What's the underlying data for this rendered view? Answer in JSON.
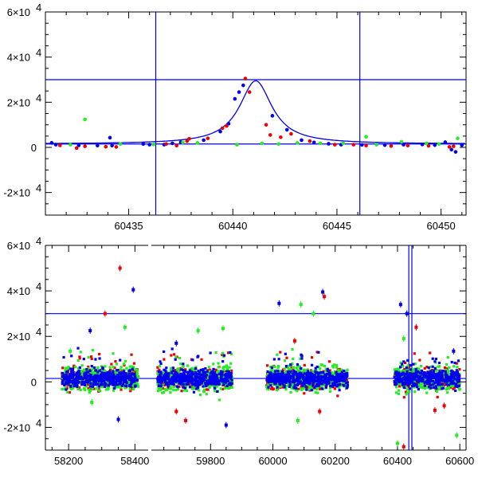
{
  "colors": {
    "blue": "#0000ee",
    "red": "#ee0000",
    "green": "#22ee22",
    "axis": "#000000",
    "background": "#ffffff"
  },
  "chart_data": [
    {
      "type": "scatter",
      "panel": "top",
      "title": "",
      "xlabel": "",
      "ylabel": "",
      "xlim": [
        60431,
        60451.2
      ],
      "ylim": [
        -30000,
        60000
      ],
      "xticks": [
        {
          "value": 60435,
          "label": "60435"
        },
        {
          "value": 60440,
          "label": "60440"
        },
        {
          "value": 60445,
          "label": "60445"
        },
        {
          "value": 60450,
          "label": "60450"
        }
      ],
      "yticks": [
        {
          "value": -20000,
          "label": "-2×10",
          "exp": "4"
        },
        {
          "value": 0,
          "label": "0",
          "exp": ""
        },
        {
          "value": 20000,
          "label": "2×10",
          "exp": "4"
        },
        {
          "value": 40000,
          "label": "4×10",
          "exp": "4"
        },
        {
          "value": 60000,
          "label": "6×10",
          "exp": "4"
        }
      ],
      "hlines": [
        30000,
        1500
      ],
      "vlines": [
        60436.3,
        60446.1
      ],
      "model_curve": {
        "color": "blue",
        "baseline": 1500,
        "peak_x": 60441.1,
        "amplitude": 28000,
        "width": 0.95
      },
      "series": [
        {
          "color": "blue",
          "points": [
            [
              60431.3,
              2000
            ],
            [
              60431.5,
              1200
            ],
            [
              60432.6,
              900
            ],
            [
              60433.5,
              800
            ],
            [
              60434.1,
              4300
            ],
            [
              60434.2,
              800
            ],
            [
              60435.7,
              1500
            ],
            [
              60436.0,
              1200
            ],
            [
              60436.7,
              1200
            ],
            [
              60437.1,
              1800
            ],
            [
              60437.5,
              2300
            ],
            [
              60438.6,
              3200
            ],
            [
              60439.4,
              7000
            ],
            [
              60439.8,
              10500
            ],
            [
              60440.1,
              21500
            ],
            [
              60440.3,
              24500
            ],
            [
              60440.5,
              27500
            ],
            [
              60441.9,
              14000
            ],
            [
              60442.6,
              7800
            ],
            [
              60443.3,
              3200
            ],
            [
              60443.9,
              2200
            ],
            [
              60444.6,
              1600
            ],
            [
              60445.2,
              1200
            ],
            [
              60446.2,
              1100
            ],
            [
              60447.3,
              1000
            ],
            [
              60448.2,
              1200
            ],
            [
              60449.1,
              1300
            ],
            [
              60449.7,
              1000
            ],
            [
              60450.2,
              2300
            ],
            [
              60450.5,
              -1000
            ],
            [
              60450.7,
              -2000
            ],
            [
              60451.0,
              1000
            ]
          ]
        },
        {
          "color": "red",
          "points": [
            [
              60431.7,
              900
            ],
            [
              60432.5,
              -300
            ],
            [
              60432.9,
              500
            ],
            [
              60433.9,
              300
            ],
            [
              60434.4,
              200
            ],
            [
              60436.8,
              1500
            ],
            [
              60437.3,
              800
            ],
            [
              60437.8,
              2800
            ],
            [
              60437.9,
              3800
            ],
            [
              60438.8,
              4000
            ],
            [
              60439.5,
              8500
            ],
            [
              60439.7,
              9500
            ],
            [
              60440.6,
              30500
            ],
            [
              60440.8,
              24500
            ],
            [
              60441.6,
              10000
            ],
            [
              60441.8,
              5500
            ],
            [
              60442.3,
              4500
            ],
            [
              60442.8,
              6000
            ],
            [
              60443.7,
              2800
            ],
            [
              60444.9,
              1200
            ],
            [
              60445.8,
              1200
            ],
            [
              60446.4,
              800
            ],
            [
              60447.6,
              600
            ],
            [
              60448.4,
              800
            ],
            [
              60449.4,
              700
            ],
            [
              60450.4,
              200
            ],
            [
              60450.6,
              500
            ]
          ]
        },
        {
          "color": "green",
          "points": [
            [
              60432.2,
              1200
            ],
            [
              60432.9,
              12400
            ],
            [
              60434.6,
              1500
            ],
            [
              60436.2,
              1300
            ],
            [
              60437.6,
              2200
            ],
            [
              60438.3,
              2000
            ],
            [
              60440.2,
              1200
            ],
            [
              60441.4,
              1800
            ],
            [
              60442.2,
              1500
            ],
            [
              60443.1,
              2000
            ],
            [
              60444.2,
              1800
            ],
            [
              60445.3,
              1800
            ],
            [
              60446.4,
              4700
            ],
            [
              60446.9,
              1200
            ],
            [
              60448.1,
              2500
            ],
            [
              60449.3,
              1800
            ],
            [
              60449.9,
              1500
            ],
            [
              60450.8,
              4000
            ]
          ]
        }
      ]
    },
    {
      "type": "scatter",
      "panel": "bottom",
      "title": "",
      "xlabel": "",
      "ylabel": "",
      "ylim": [
        -30000,
        60000
      ],
      "broken_x_axis": true,
      "x_segments": [
        {
          "range": [
            58130,
            58440
          ]
        },
        {
          "range": [
            59610,
            60620
          ]
        }
      ],
      "xticks": [
        {
          "value": 58200,
          "label": "58200"
        },
        {
          "value": 58400,
          "label": "58400"
        },
        {
          "value": 59800,
          "label": "59800"
        },
        {
          "value": 60000,
          "label": "60000"
        },
        {
          "value": 60200,
          "label": "60200"
        },
        {
          "value": 60400,
          "label": "60400"
        },
        {
          "value": 60600,
          "label": "60600"
        }
      ],
      "yticks": [
        {
          "value": -20000,
          "label": "-2×10",
          "exp": "4"
        },
        {
          "value": 0,
          "label": "0",
          "exp": ""
        },
        {
          "value": 20000,
          "label": "2×10",
          "exp": "4"
        },
        {
          "value": 40000,
          "label": "4×10",
          "exp": "4"
        },
        {
          "value": 60000,
          "label": "6×10",
          "exp": "4"
        }
      ],
      "hlines": [
        30000,
        1500
      ],
      "vlines": [
        60436.3,
        60446.1
      ],
      "seasons": [
        [
          58180,
          58410
        ],
        [
          59630,
          59870
        ],
        [
          59980,
          60240
        ],
        [
          60390,
          60600
        ]
      ],
      "outliers": [
        {
          "color": "red",
          "x": 58355,
          "y": 50000
        },
        {
          "color": "blue",
          "x": 58395,
          "y": 40500
        },
        {
          "color": "red",
          "x": 58310,
          "y": 30000
        },
        {
          "color": "green",
          "x": 58370,
          "y": 24000
        },
        {
          "color": "blue",
          "x": 58265,
          "y": 22500
        },
        {
          "color": "green",
          "x": 58205,
          "y": 13500
        },
        {
          "color": "blue",
          "x": 58350,
          "y": -16500
        },
        {
          "color": "green",
          "x": 58270,
          "y": -9000
        },
        {
          "color": "green",
          "x": 59760,
          "y": 22500
        },
        {
          "color": "green",
          "x": 59840,
          "y": 23500
        },
        {
          "color": "blue",
          "x": 59690,
          "y": 17000
        },
        {
          "color": "red",
          "x": 59690,
          "y": -13000
        },
        {
          "color": "red",
          "x": 59720,
          "y": -17000
        },
        {
          "color": "blue",
          "x": 59850,
          "y": -19000
        },
        {
          "color": "blue",
          "x": 60020,
          "y": 34500
        },
        {
          "color": "green",
          "x": 60090,
          "y": 34000
        },
        {
          "color": "blue",
          "x": 60160,
          "y": 39500
        },
        {
          "color": "red",
          "x": 60165,
          "y": 37500
        },
        {
          "color": "red",
          "x": 60070,
          "y": 18000
        },
        {
          "color": "green",
          "x": 60130,
          "y": 30000
        },
        {
          "color": "green",
          "x": 60080,
          "y": -17000
        },
        {
          "color": "red",
          "x": 60150,
          "y": -13000
        },
        {
          "color": "blue",
          "x": 60410,
          "y": 34000
        },
        {
          "color": "blue",
          "x": 60430,
          "y": 30000
        },
        {
          "color": "red",
          "x": 60460,
          "y": 24000
        },
        {
          "color": "green",
          "x": 60420,
          "y": 19000
        },
        {
          "color": "blue",
          "x": 60580,
          "y": 13500
        },
        {
          "color": "green",
          "x": 60400,
          "y": -27000
        },
        {
          "color": "red",
          "x": 60420,
          "y": -28500
        },
        {
          "color": "green",
          "x": 60590,
          "y": -23500
        },
        {
          "color": "red",
          "x": 60520,
          "y": -12500
        },
        {
          "color": "red",
          "x": 60550,
          "y": -10500
        }
      ]
    }
  ]
}
